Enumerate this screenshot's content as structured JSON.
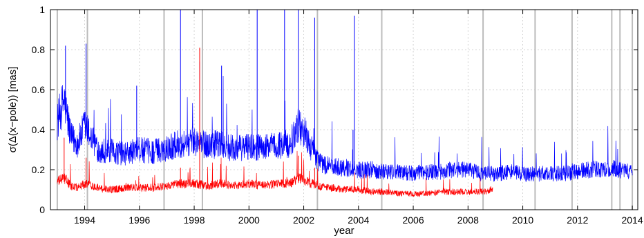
{
  "chart_data": {
    "type": "line",
    "title": "",
    "xlabel": "year",
    "ylabel": "σ(Δ(x−pole)) [mas]",
    "xlim": [
      1992.75,
      2014.2
    ],
    "ylim": [
      0,
      1
    ],
    "xticks": [
      1994,
      1996,
      1998,
      2000,
      2002,
      2004,
      2006,
      2008,
      2010,
      2012,
      2014
    ],
    "yticks": [
      0,
      0.2,
      0.4,
      0.6,
      0.8,
      1
    ],
    "xtick_labels": [
      "1994",
      "1996",
      "1998",
      "2000",
      "2002",
      "2004",
      "2006",
      "2008",
      "2010",
      "2012",
      "2014"
    ],
    "ytick_labels": [
      "0",
      "0.2",
      "0.4",
      "0.6",
      "0.8",
      "1"
    ],
    "grid": true,
    "legend": "none",
    "vertical_markers": [
      1993.0,
      1994.1,
      1996.9,
      1998.3,
      2002.5,
      2004.85,
      2008.55,
      2010.45,
      2011.8,
      2013.25,
      2013.55,
      2014.0
    ],
    "series": [
      {
        "color": "#0000ff",
        "x": [
          1993.0,
          1993.25,
          1993.5,
          1993.75,
          1994.0,
          1994.5,
          1995.0,
          1995.5,
          1996.0,
          1996.5,
          1997.0,
          1997.5,
          1998.0,
          1998.5,
          1999.0,
          1999.5,
          2000.0,
          2000.5,
          2001.0,
          2001.5,
          2001.8,
          2002.0,
          2002.3,
          2002.5,
          2002.8,
          2003.0,
          2003.5,
          2004.0,
          2004.5,
          2005.0,
          2005.5,
          2006.0,
          2006.5,
          2007.0,
          2007.5,
          2008.0,
          2008.5,
          2009.0,
          2009.5,
          2010.0,
          2010.5,
          2011.0,
          2011.5,
          2012.0,
          2012.5,
          2013.0,
          2013.5,
          2014.0
        ],
        "values": [
          0.44,
          0.55,
          0.36,
          0.33,
          0.42,
          0.3,
          0.29,
          0.28,
          0.3,
          0.29,
          0.31,
          0.33,
          0.34,
          0.32,
          0.33,
          0.3,
          0.32,
          0.31,
          0.32,
          0.33,
          0.42,
          0.4,
          0.3,
          0.25,
          0.22,
          0.22,
          0.21,
          0.2,
          0.2,
          0.19,
          0.19,
          0.18,
          0.19,
          0.19,
          0.2,
          0.2,
          0.18,
          0.18,
          0.19,
          0.18,
          0.18,
          0.18,
          0.18,
          0.19,
          0.2,
          0.21,
          0.2,
          0.19
        ],
        "spikes": [
          {
            "x": 1993.3,
            "y": 0.82
          },
          {
            "x": 1994.05,
            "y": 0.83
          },
          {
            "x": 1995.9,
            "y": 0.62
          },
          {
            "x": 1997.5,
            "y": 1.0
          },
          {
            "x": 1998.2,
            "y": 0.74
          },
          {
            "x": 1999.0,
            "y": 0.72
          },
          {
            "x": 2000.3,
            "y": 1.0
          },
          {
            "x": 2001.3,
            "y": 1.0
          },
          {
            "x": 2001.8,
            "y": 1.0
          },
          {
            "x": 2002.4,
            "y": 0.96
          },
          {
            "x": 2003.85,
            "y": 0.97
          },
          {
            "x": 2003.8,
            "y": 0.4
          }
        ]
      },
      {
        "color": "#ff0000",
        "x": [
          1993.0,
          1993.25,
          1993.5,
          1993.75,
          1994.0,
          1994.5,
          1995.0,
          1995.5,
          1996.0,
          1996.5,
          1997.0,
          1997.5,
          1998.0,
          1998.5,
          1999.0,
          1999.5,
          2000.0,
          2000.5,
          2001.0,
          2001.5,
          2001.8,
          2002.0,
          2002.3,
          2002.5,
          2003.0,
          2003.5,
          2004.0,
          2004.5,
          2005.0,
          2005.5,
          2006.0,
          2006.5,
          2007.0,
          2007.5,
          2008.0,
          2008.5,
          2008.9
        ],
        "values": [
          0.14,
          0.16,
          0.12,
          0.11,
          0.13,
          0.11,
          0.1,
          0.11,
          0.11,
          0.11,
          0.12,
          0.13,
          0.13,
          0.12,
          0.13,
          0.12,
          0.13,
          0.12,
          0.13,
          0.13,
          0.16,
          0.15,
          0.13,
          0.12,
          0.11,
          0.1,
          0.1,
          0.09,
          0.09,
          0.08,
          0.08,
          0.08,
          0.09,
          0.09,
          0.09,
          0.09,
          0.1
        ],
        "spikes": [
          {
            "x": 1993.25,
            "y": 0.36
          },
          {
            "x": 1994.05,
            "y": 0.26
          },
          {
            "x": 1997.5,
            "y": 0.21
          },
          {
            "x": 1998.2,
            "y": 0.81
          },
          {
            "x": 2001.8,
            "y": 0.27
          },
          {
            "x": 2002.4,
            "y": 0.21
          }
        ]
      }
    ]
  }
}
